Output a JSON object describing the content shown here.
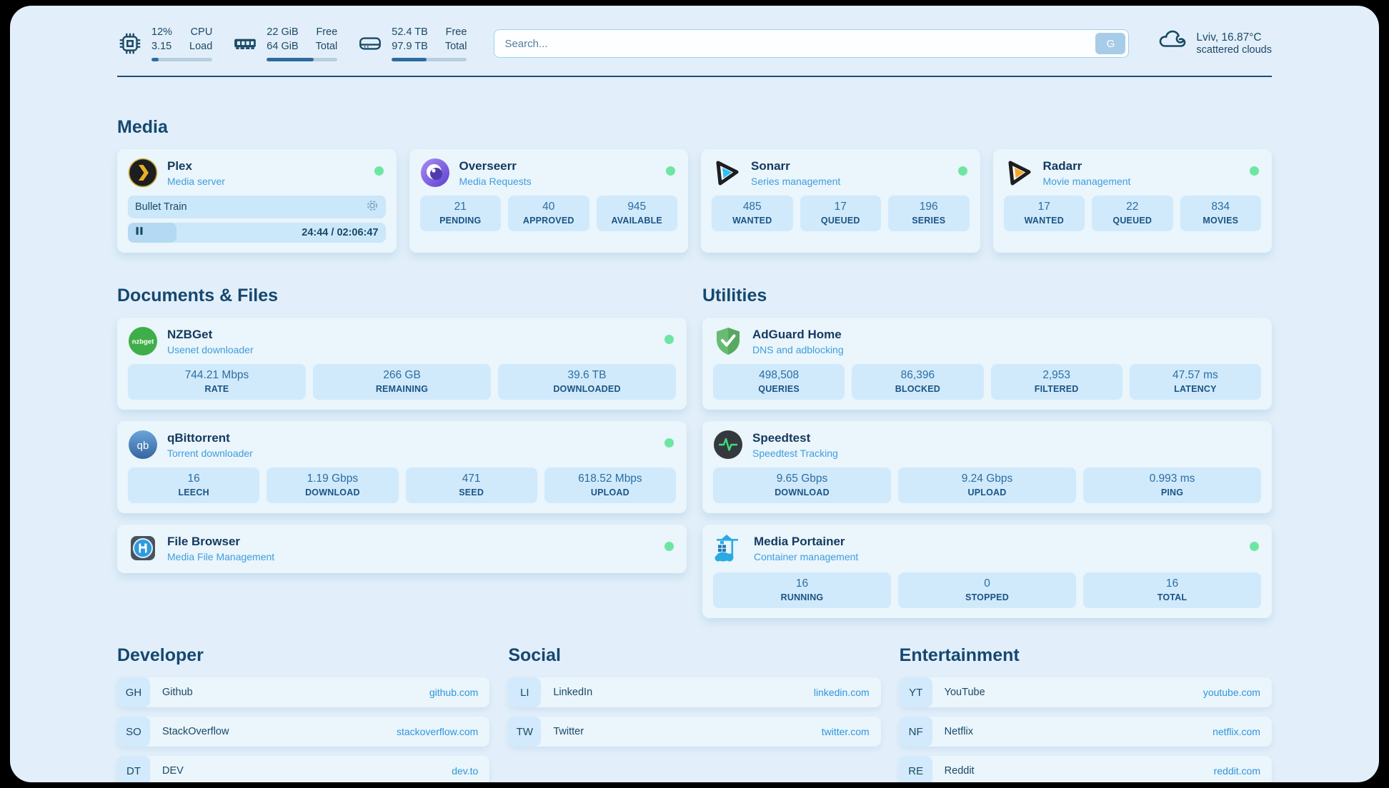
{
  "colors": {
    "page_background": "#e2effa",
    "card_background": "#eaf5fc",
    "stat_box_background": "#d0eafc",
    "accent_navy": "#1b4965",
    "accent_link_blue": "#3e9edd",
    "online_green": "#6ee6a2",
    "plex_yellow": "#ebaf24",
    "sonarr_blue": "#2ec1f3",
    "radarr_orange": "#f8a62b",
    "nzbget_green": "#3fae49",
    "adguard_green": "#68bc71",
    "qbittorrent_blue": "#4a86c8",
    "portainer_blue": "#2aaae2"
  },
  "header": {
    "cpu": {
      "icon": "cpu-chip-icon",
      "value_top": "12%",
      "label_top": "CPU",
      "value_bottom": "3.15",
      "label_bottom": "Load",
      "progress_pct": 12
    },
    "ram": {
      "icon": "ram-icon",
      "value_top": "22 GiB",
      "label_top": "Free",
      "value_bottom": "64 GiB",
      "label_bottom": "Total",
      "progress_pct": 66
    },
    "disk": {
      "icon": "hard-drive-icon",
      "value_top": "52.4 TB",
      "label_top": "Free",
      "value_bottom": "97.9 TB",
      "label_bottom": "Total",
      "progress_pct": 46
    },
    "search": {
      "placeholder": "Search...",
      "button_label": "G"
    },
    "weather": {
      "icon": "cloud-icon",
      "location_temp": "Lviv, 16.87°C",
      "condition": "scattered clouds"
    }
  },
  "media": {
    "title": "Media",
    "plex": {
      "name": "Plex",
      "subtitle": "Media server",
      "online": true,
      "now_playing": "Bullet Train",
      "time_display": "24:44 / 02:06:47",
      "progress_pct": 19
    },
    "overseerr": {
      "name": "Overseerr",
      "subtitle": "Media Requests",
      "online": true,
      "stats": [
        {
          "value": "21",
          "label": "PENDING"
        },
        {
          "value": "40",
          "label": "APPROVED"
        },
        {
          "value": "945",
          "label": "AVAILABLE"
        }
      ]
    },
    "sonarr": {
      "name": "Sonarr",
      "subtitle": "Series management",
      "online": true,
      "stats": [
        {
          "value": "485",
          "label": "WANTED"
        },
        {
          "value": "17",
          "label": "QUEUED"
        },
        {
          "value": "196",
          "label": "SERIES"
        }
      ]
    },
    "radarr": {
      "name": "Radarr",
      "subtitle": "Movie management",
      "online": true,
      "stats": [
        {
          "value": "17",
          "label": "WANTED"
        },
        {
          "value": "22",
          "label": "QUEUED"
        },
        {
          "value": "834",
          "label": "MOVIES"
        }
      ]
    }
  },
  "documents": {
    "title": "Documents & Files",
    "nzbget": {
      "name": "NZBGet",
      "subtitle": "Usenet downloader",
      "online": true,
      "stats": [
        {
          "value": "744.21 Mbps",
          "label": "RATE"
        },
        {
          "value": "266 GB",
          "label": "REMAINING"
        },
        {
          "value": "39.6 TB",
          "label": "DOWNLOADED"
        }
      ]
    },
    "qbittorrent": {
      "name": "qBittorrent",
      "subtitle": "Torrent downloader",
      "online": true,
      "stats": [
        {
          "value": "16",
          "label": "LEECH"
        },
        {
          "value": "1.19 Gbps",
          "label": "DOWNLOAD"
        },
        {
          "value": "471",
          "label": "SEED"
        },
        {
          "value": "618.52 Mbps",
          "label": "UPLOAD"
        }
      ]
    },
    "filebrowser": {
      "name": "File Browser",
      "subtitle": "Media File Management",
      "online": true
    }
  },
  "utilities": {
    "title": "Utilities",
    "adguard": {
      "name": "AdGuard Home",
      "subtitle": "DNS and adblocking",
      "online": false,
      "stats": [
        {
          "value": "498,508",
          "label": "QUERIES"
        },
        {
          "value": "86,396",
          "label": "BLOCKED"
        },
        {
          "value": "2,953",
          "label": "FILTERED"
        },
        {
          "value": "47.57 ms",
          "label": "LATENCY"
        }
      ]
    },
    "speedtest": {
      "name": "Speedtest",
      "subtitle": "Speedtest Tracking",
      "online": false,
      "stats": [
        {
          "value": "9.65 Gbps",
          "label": "DOWNLOAD"
        },
        {
          "value": "9.24 Gbps",
          "label": "UPLOAD"
        },
        {
          "value": "0.993 ms",
          "label": "PING"
        }
      ]
    },
    "portainer": {
      "name": "Media Portainer",
      "subtitle": "Container management",
      "online": true,
      "stats": [
        {
          "value": "16",
          "label": "RUNNING"
        },
        {
          "value": "0",
          "label": "STOPPED"
        },
        {
          "value": "16",
          "label": "TOTAL"
        }
      ]
    }
  },
  "bookmarks": {
    "developer": {
      "title": "Developer",
      "links": [
        {
          "badge": "GH",
          "name": "Github",
          "url": "github.com"
        },
        {
          "badge": "SO",
          "name": "StackOverflow",
          "url": "stackoverflow.com"
        },
        {
          "badge": "DT",
          "name": "DEV",
          "url": "dev.to"
        }
      ]
    },
    "social": {
      "title": "Social",
      "links": [
        {
          "badge": "LI",
          "name": "LinkedIn",
          "url": "linkedin.com"
        },
        {
          "badge": "TW",
          "name": "Twitter",
          "url": "twitter.com"
        }
      ]
    },
    "entertainment": {
      "title": "Entertainment",
      "links": [
        {
          "badge": "YT",
          "name": "YouTube",
          "url": "youtube.com"
        },
        {
          "badge": "NF",
          "name": "Netflix",
          "url": "netflix.com"
        },
        {
          "badge": "RE",
          "name": "Reddit",
          "url": "reddit.com"
        }
      ]
    }
  }
}
